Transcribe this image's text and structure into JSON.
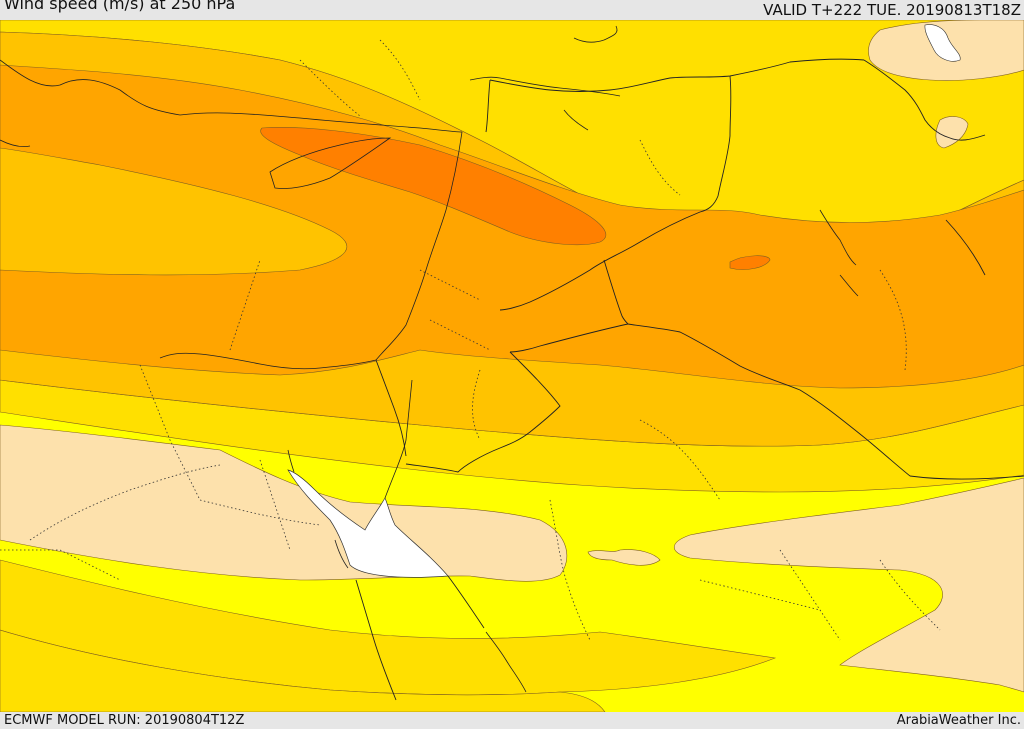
{
  "header": {
    "title": "Wind speed (m/s) at 250 hPa",
    "valid": "VALID T+222 TUE. 20190813T18Z"
  },
  "footer": {
    "model_run": "ECMWF MODEL RUN: 20190804T12Z",
    "credit": "ArabiaWeather Inc."
  },
  "colors": {
    "band_sub15": "#fde1ac",
    "band_15_20": "#ffff00",
    "band_20_25": "#ffe000",
    "band_25_30": "#ffc300",
    "band_30_35": "#ffa500",
    "band_35_40": "#ff8000",
    "water": "#ffffff"
  }
}
